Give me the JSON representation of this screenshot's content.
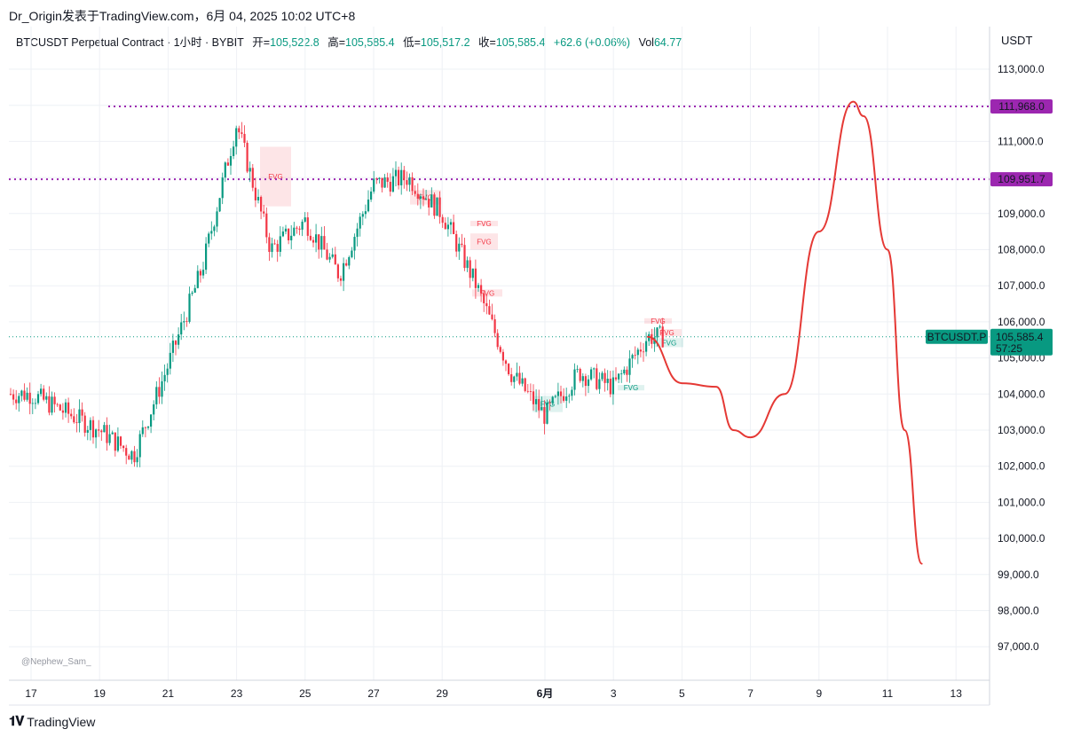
{
  "header": {
    "publisher_line": "Dr_Origin发表于TradingView.com，6月 04, 2025 10:02 UTC+8",
    "symbol": "BTCUSDT Perpetual Contract · 1小时 · BYBIT",
    "open_label": "开=",
    "open_value": "105,522.8",
    "high_label": "高=",
    "high_value": "105,585.4",
    "low_label": "低=",
    "low_value": "105,517.2",
    "close_label": "收=",
    "close_value": "105,585.4",
    "change": "+62.6 (+0.06%)",
    "vol_label": "Vol",
    "vol_value": "64.77",
    "currency": "USDT"
  },
  "footer": {
    "brand": "TradingView",
    "watermark": "@Nephew_Sam_"
  },
  "colors": {
    "up": "#089981",
    "down": "#f23645",
    "level": "#9c27b0",
    "drawing": "#e53935",
    "price_tag": "#089981"
  },
  "chart_data": {
    "type": "line",
    "title": "BTCUSDT Perpetual Contract · 1小时 · BYBIT",
    "ylim": [
      96000,
      114000
    ],
    "y_ticks": [
      "113,000.0",
      "112,000.0",
      "111,000.0",
      "110,000.0",
      "109,000.0",
      "108,000.0",
      "107,000.0",
      "106,000.0",
      "105,000.0",
      "104,000.0",
      "103,000.0",
      "102,000.0",
      "101,000.0",
      "100,000.0",
      "99,000.0",
      "98,000.0",
      "97,000.0"
    ],
    "x_ticks": [
      "17",
      "19",
      "21",
      "23",
      "25",
      "27",
      "29",
      "6月",
      "3",
      "5",
      "7",
      "9",
      "11",
      "13"
    ],
    "grid": true,
    "price_series": {
      "name": "BTCUSDT.P",
      "x": [
        "17",
        "19",
        "20",
        "21",
        "22",
        "23",
        "24",
        "25",
        "26",
        "27",
        "28",
        "29",
        "30",
        "31",
        "6月",
        "2",
        "3",
        "4"
      ],
      "values": [
        104000,
        103000,
        102300,
        104800,
        107500,
        111500,
        108000,
        108800,
        107300,
        109800,
        110000,
        109000,
        107000,
        104600,
        103400,
        104600,
        104200,
        105585.4
      ]
    },
    "levels": [
      {
        "label": "111,968.0",
        "value": 111968.0
      },
      {
        "label": "109,951.7",
        "value": 109951.7
      }
    ],
    "current_price": {
      "symbol": "BTCUSDT.P",
      "value": "105,585.4",
      "countdown": "57:25"
    },
    "fvg_zones": [
      {
        "label": "FVG",
        "type": "bearish",
        "low": 109200,
        "high": 110850
      },
      {
        "label": "FVG",
        "type": "bearish",
        "low": 109250,
        "high": 109650
      },
      {
        "label": "FVG",
        "type": "bearish",
        "low": 108650,
        "high": 108800
      },
      {
        "label": "FVG",
        "type": "bearish",
        "low": 108000,
        "high": 108450
      },
      {
        "label": "FVG",
        "type": "bearish",
        "low": 106700,
        "high": 106900
      },
      {
        "label": "FVG",
        "type": "bullish",
        "low": 103500,
        "high": 103950
      },
      {
        "label": "FVG",
        "type": "bullish",
        "low": 104100,
        "high": 104250
      },
      {
        "label": "FVG",
        "type": "bearish",
        "low": 105950,
        "high": 106100
      },
      {
        "label": "FVG",
        "type": "bearish",
        "low": 105600,
        "high": 105800
      },
      {
        "label": "FVG",
        "type": "bullish",
        "low": 105300,
        "high": 105550
      }
    ],
    "projection": {
      "x": [
        "4",
        "5",
        "6",
        "6.5",
        "7",
        "8",
        "9",
        "10",
        "10.3",
        "11",
        "11.5",
        "12"
      ],
      "values": [
        105585,
        104300,
        104200,
        103000,
        102800,
        104000,
        108500,
        112100,
        111700,
        108000,
        103000,
        99300
      ]
    }
  }
}
